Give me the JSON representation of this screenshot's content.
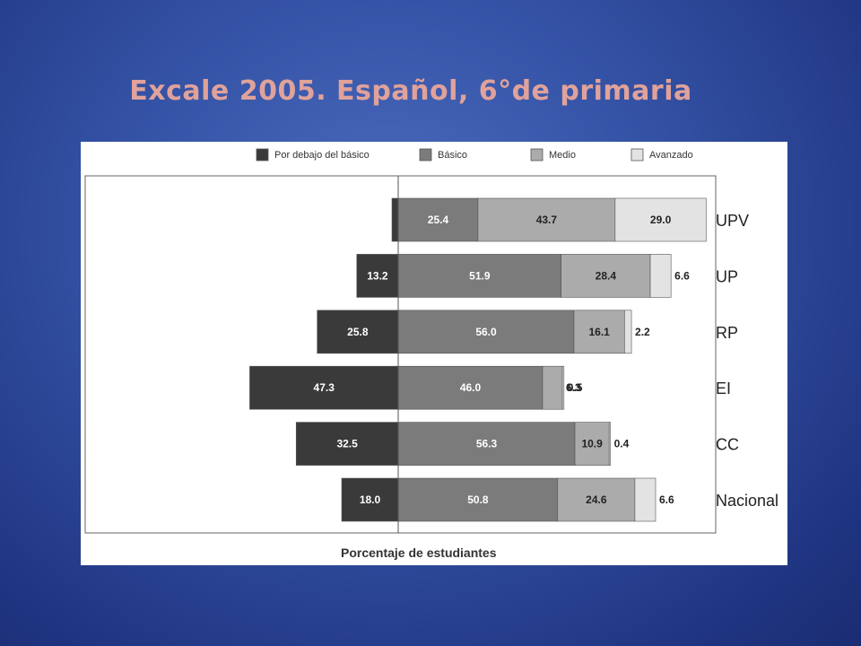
{
  "slide": {
    "title": "Excale 2005. Español, 6°de primaria"
  },
  "chart_data": {
    "type": "bar",
    "orientation": "horizontal",
    "stacked": "diverging",
    "categories": [
      "UPV",
      "UP",
      "RP",
      "EI",
      "CC",
      "Nacional"
    ],
    "series": [
      {
        "name": "Por debajo del básico",
        "color": "#3a3a3a",
        "direction": "negative",
        "values": [
          2.0,
          13.2,
          25.8,
          47.3,
          32.5,
          18.0
        ]
      },
      {
        "name": "Básico",
        "color": "#7b7b7b",
        "direction": "positive",
        "values": [
          25.4,
          51.9,
          56.0,
          46.0,
          56.3,
          50.8
        ]
      },
      {
        "name": "Medio",
        "color": "#ababab",
        "direction": "positive",
        "values": [
          43.7,
          28.4,
          16.1,
          6.3,
          10.9,
          24.6
        ]
      },
      {
        "name": "Avanzado",
        "color": "#e3e3e3",
        "direction": "positive",
        "values": [
          29.0,
          6.6,
          2.2,
          0.5,
          0.4,
          6.6
        ]
      }
    ],
    "xlabel": "Porcentaje de estudiantes",
    "legend_position": "top",
    "grid": false
  }
}
